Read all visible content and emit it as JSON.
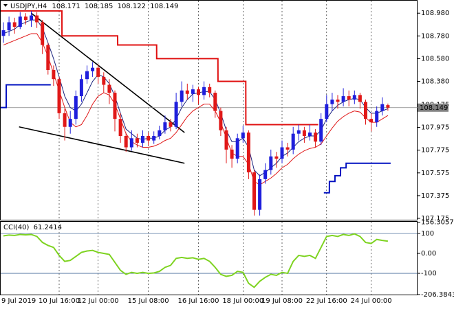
{
  "chart_data": [
    {
      "type": "candlestick",
      "title": "USDJPY,H4",
      "categories": [
        "9 Jul 2019",
        null,
        null,
        null,
        null,
        null,
        null,
        null,
        null,
        null,
        "10 Jul 16:00",
        null,
        null,
        null,
        null,
        null,
        null,
        "12 Jul 00:00",
        null,
        null,
        null,
        null,
        null,
        null,
        null,
        null,
        "15 Jul 08:00",
        null,
        null,
        null,
        null,
        null,
        null,
        null,
        null,
        "16 Jul 16:00",
        null,
        null,
        null,
        null,
        null,
        null,
        null,
        "18 Jul 00:00",
        null,
        null,
        null,
        null,
        null,
        null,
        "19 Jul 08:00",
        null,
        null,
        null,
        null,
        null,
        null,
        null,
        "22 Jul 16:00",
        null,
        null,
        null,
        null,
        null,
        null,
        null,
        "24 Jul 00:00",
        null,
        null,
        null
      ],
      "open": [
        108.78,
        108.83,
        108.9,
        108.86,
        108.95,
        108.92,
        108.96,
        108.9,
        108.7,
        108.48,
        108.4,
        108.1,
        107.98,
        108.05,
        108.25,
        108.4,
        108.47,
        108.5,
        108.42,
        108.35,
        108.28,
        108.05,
        107.9,
        107.8,
        107.88,
        107.84,
        107.9,
        107.86,
        107.9,
        107.95,
        108.02,
        107.98,
        108.2,
        108.3,
        108.27,
        108.31,
        108.26,
        108.33,
        108.28,
        108.12,
        107.95,
        107.78,
        107.7,
        107.88,
        107.93,
        107.58,
        107.25,
        107.52,
        107.6,
        107.72,
        107.7,
        107.8,
        107.78,
        107.92,
        107.95,
        107.9,
        107.93,
        107.85,
        108.05,
        108.18,
        108.22,
        108.2,
        108.25,
        108.22,
        108.26,
        108.2,
        108.05,
        108.02,
        108.12,
        108.171
      ],
      "high": [
        108.9,
        108.95,
        108.94,
        108.99,
        108.98,
        109.0,
        108.99,
        108.92,
        108.72,
        108.52,
        108.42,
        108.14,
        108.12,
        108.3,
        108.44,
        108.52,
        108.55,
        108.53,
        108.46,
        108.4,
        108.3,
        108.1,
        107.93,
        107.95,
        107.92,
        107.95,
        107.93,
        107.94,
        107.99,
        108.08,
        108.05,
        108.28,
        108.38,
        108.36,
        108.35,
        108.33,
        108.38,
        108.36,
        108.3,
        108.15,
        107.98,
        107.82,
        107.92,
        107.99,
        107.95,
        107.6,
        107.56,
        107.66,
        107.78,
        107.76,
        107.86,
        107.84,
        107.98,
        108.0,
        107.98,
        108.0,
        107.96,
        108.1,
        108.26,
        108.28,
        108.26,
        108.32,
        108.3,
        108.3,
        108.28,
        108.22,
        108.1,
        108.16,
        108.24,
        108.185
      ],
      "low": [
        108.72,
        108.78,
        108.8,
        108.84,
        108.88,
        108.86,
        108.85,
        108.62,
        108.44,
        108.34,
        108.05,
        107.86,
        107.92,
        108.0,
        108.2,
        108.36,
        108.42,
        108.36,
        108.28,
        108.18,
        107.94,
        107.84,
        107.76,
        107.77,
        107.8,
        107.8,
        107.82,
        107.83,
        107.87,
        107.92,
        107.94,
        107.96,
        108.16,
        108.22,
        108.2,
        108.18,
        108.22,
        108.24,
        108.06,
        107.9,
        107.66,
        107.62,
        107.66,
        107.84,
        107.52,
        107.2,
        107.2,
        107.48,
        107.56,
        107.62,
        107.66,
        107.72,
        107.74,
        107.86,
        107.84,
        107.86,
        107.8,
        107.82,
        108.02,
        108.12,
        108.14,
        108.16,
        108.16,
        108.18,
        108.14,
        108.0,
        107.94,
        107.98,
        108.08,
        108.122
      ],
      "close": [
        108.83,
        108.9,
        108.86,
        108.95,
        108.92,
        108.96,
        108.9,
        108.7,
        108.48,
        108.4,
        108.1,
        107.98,
        108.05,
        108.25,
        108.4,
        108.47,
        108.5,
        108.42,
        108.35,
        108.28,
        108.05,
        107.9,
        107.8,
        107.88,
        107.84,
        107.9,
        107.86,
        107.9,
        107.95,
        108.02,
        107.98,
        108.2,
        108.3,
        108.27,
        108.31,
        108.26,
        108.33,
        108.28,
        108.12,
        107.95,
        107.78,
        107.7,
        107.88,
        107.93,
        107.58,
        107.25,
        107.52,
        107.6,
        107.72,
        107.7,
        107.8,
        107.78,
        107.92,
        107.95,
        107.9,
        107.93,
        107.85,
        108.05,
        108.18,
        108.22,
        108.2,
        108.25,
        108.22,
        108.26,
        108.2,
        108.05,
        108.02,
        108.12,
        108.18,
        108.149
      ],
      "up_color": "#1e1edc",
      "down_color": "#e01818",
      "lines": [
        {
          "color": "#1a237e",
          "width": 1,
          "step": false,
          "values": [
            108.8,
            108.82,
            108.84,
            108.88,
            108.9,
            108.92,
            108.92,
            108.85,
            108.72,
            108.58,
            108.42,
            108.25,
            108.15,
            108.12,
            108.18,
            108.28,
            108.38,
            108.44,
            108.42,
            108.36,
            108.25,
            108.1,
            107.96,
            107.92,
            107.88,
            107.87,
            107.88,
            107.88,
            107.9,
            107.95,
            107.98,
            108.05,
            108.15,
            108.22,
            108.27,
            108.28,
            108.29,
            108.29,
            108.22,
            108.1,
            107.95,
            107.85,
            107.85,
            107.88,
            107.8,
            107.6,
            107.55,
            107.58,
            107.62,
            107.66,
            107.72,
            107.75,
            107.8,
            107.85,
            107.88,
            107.9,
            107.9,
            107.95,
            108.05,
            108.12,
            108.17,
            108.2,
            108.22,
            108.23,
            108.22,
            108.15,
            108.1,
            108.1,
            108.12,
            108.14
          ]
        },
        {
          "color": "#e01818",
          "width": 1,
          "step": false,
          "values": [
            108.7,
            108.72,
            108.74,
            108.76,
            108.78,
            108.8,
            108.8,
            108.72,
            108.6,
            108.45,
            108.3,
            108.15,
            108.02,
            107.98,
            108.0,
            108.08,
            108.18,
            108.25,
            108.28,
            108.26,
            108.18,
            108.05,
            107.92,
            107.85,
            107.82,
            107.8,
            107.8,
            107.81,
            107.83,
            107.86,
            107.88,
            107.93,
            108.0,
            108.07,
            108.12,
            108.15,
            108.18,
            108.18,
            108.12,
            108.02,
            107.88,
            107.75,
            107.72,
            107.72,
            107.65,
            107.5,
            107.47,
            107.5,
            107.53,
            107.57,
            107.62,
            107.65,
            107.7,
            107.74,
            107.77,
            107.79,
            107.8,
            107.83,
            107.9,
            107.97,
            108.03,
            108.07,
            108.1,
            108.12,
            108.11,
            108.06,
            108.02,
            108.02,
            108.05,
            108.08
          ]
        },
        {
          "color": "#e01010",
          "width": 2,
          "step": true,
          "values": [
            109.0,
            109.0,
            109.0,
            109.0,
            109.0,
            109.0,
            109.0,
            109.0,
            109.0,
            109.0,
            109.0,
            108.78,
            108.78,
            108.78,
            108.78,
            108.78,
            108.78,
            108.78,
            108.78,
            108.78,
            108.78,
            108.7,
            108.7,
            108.7,
            108.7,
            108.7,
            108.7,
            108.7,
            108.58,
            108.58,
            108.58,
            108.58,
            108.58,
            108.58,
            108.58,
            108.58,
            108.58,
            108.58,
            108.58,
            108.38,
            108.38,
            108.38,
            108.38,
            108.38,
            108.0,
            108.0,
            108.0,
            108.0,
            108.0,
            108.0,
            108.0,
            108.0,
            108.0,
            108.0,
            108.0,
            108.0,
            108.0,
            null,
            null,
            null,
            null,
            null,
            null,
            null,
            null,
            null,
            null,
            null,
            null,
            null
          ]
        },
        {
          "color": "#0010c0",
          "width": 2,
          "step": true,
          "values": [
            108.15,
            108.35,
            108.35,
            108.35,
            108.35,
            108.35,
            108.35,
            108.35,
            108.35,
            null,
            null,
            null,
            null,
            null,
            null,
            null,
            null,
            null,
            null,
            null,
            null,
            null,
            null,
            null,
            null,
            null,
            null,
            null,
            null,
            null,
            null,
            null,
            null,
            null,
            null,
            null,
            null,
            null,
            null,
            null,
            null,
            null,
            null,
            null,
            null,
            null,
            null,
            null,
            null,
            null,
            null,
            null,
            null,
            null,
            null,
            null,
            null,
            null,
            107.4,
            107.5,
            107.55,
            107.62,
            107.66,
            107.66,
            107.66,
            107.66,
            107.66,
            107.66,
            107.66,
            107.66
          ]
        }
      ],
      "trendlines": [
        {
          "color": "#000000",
          "from": [
            5,
            108.98
          ],
          "to": [
            32.5,
            107.93
          ]
        },
        {
          "color": "#000000",
          "from": [
            2.8,
            107.98
          ],
          "to": [
            32.5,
            107.66
          ]
        }
      ],
      "ylim": [
        107.163,
        109.096
      ],
      "yticks": [
        {
          "value": 108.98,
          "label": "108.980"
        },
        {
          "value": 108.78,
          "label": "108.780"
        },
        {
          "value": 108.58,
          "label": "108.580"
        },
        {
          "value": 108.38,
          "label": "108.380"
        },
        108.175,
        107.975,
        107.775,
        107.575,
        107.375,
        107.175
      ],
      "last_price_color": "#808080"
    },
    {
      "type": "line",
      "title": "CCI(40)",
      "color": "#7ed321",
      "values": [
        88,
        92,
        90,
        95,
        93,
        95,
        85,
        55,
        40,
        30,
        -10,
        -40,
        -35,
        -15,
        5,
        12,
        15,
        5,
        0,
        -5,
        -45,
        -85,
        -105,
        -95,
        -100,
        -95,
        -100,
        -98,
        -90,
        -70,
        -60,
        -25,
        -20,
        -25,
        -22,
        -30,
        -25,
        -40,
        -70,
        -105,
        -115,
        -110,
        -90,
        -95,
        -150,
        -170,
        -140,
        -120,
        -105,
        -110,
        -95,
        -100,
        -40,
        -10,
        -15,
        -10,
        -25,
        30,
        85,
        90,
        85,
        95,
        90,
        98,
        85,
        55,
        50,
        70,
        65,
        61.2414
      ],
      "levels": [
        100,
        -100
      ],
      "level_color": "#4a6f9c",
      "ylim": [
        -210,
        162
      ],
      "yticks": [
        156.3057,
        100,
        {
          "value": 0,
          "label": "0.00"
        },
        -100,
        -206.3843
      ]
    }
  ]
}
